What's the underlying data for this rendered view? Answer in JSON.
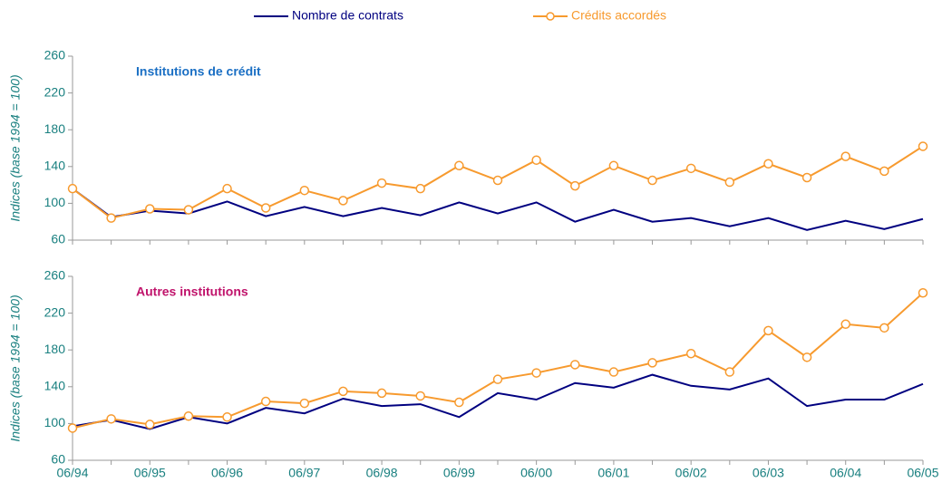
{
  "chart_data": [
    {
      "type": "line",
      "annotation": "Institutions de crédit",
      "annotation_color": "#1a6fc4",
      "ylabel": "Indices (base 1994 = 100)",
      "ylim": [
        60,
        260
      ],
      "yticks": [
        60,
        100,
        140,
        180,
        220,
        260
      ],
      "series": [
        {
          "name": "Nombre de contrats",
          "color": "#000080",
          "marker": false,
          "values": [
            116,
            85,
            92,
            89,
            102,
            86,
            96,
            86,
            95,
            87,
            101,
            89,
            101,
            80,
            93,
            80,
            84,
            75,
            84,
            71,
            81,
            72,
            83
          ]
        },
        {
          "name": "Crédits accordés",
          "color": "#f79a2e",
          "marker": true,
          "values": [
            116,
            84,
            94,
            93,
            116,
            95,
            114,
            103,
            122,
            116,
            141,
            125,
            147,
            119,
            141,
            125,
            138,
            123,
            143,
            128,
            151,
            135,
            162
          ]
        }
      ]
    },
    {
      "type": "line",
      "annotation": "Autres institutions",
      "annotation_color": "#c0136b",
      "ylabel": "Indices (base 1994 = 100)",
      "ylim": [
        60,
        260
      ],
      "yticks": [
        60,
        100,
        140,
        180,
        220,
        260
      ],
      "categories": [
        "06/94",
        null,
        "06/95",
        null,
        "06/96",
        null,
        "06/97",
        null,
        "06/98",
        null,
        "06/99",
        null,
        "06/00",
        null,
        "06/01",
        null,
        "06/02",
        null,
        "06/03",
        null,
        "06/04",
        null,
        "06/05"
      ],
      "series": [
        {
          "name": "Nombre de contrats",
          "color": "#000080",
          "marker": false,
          "values": [
            97,
            104,
            94,
            107,
            100,
            117,
            111,
            127,
            119,
            121,
            107,
            133,
            126,
            144,
            139,
            153,
            141,
            137,
            149,
            119,
            126,
            126,
            143
          ]
        },
        {
          "name": "Crédits accordés",
          "color": "#f79a2e",
          "marker": true,
          "values": [
            95,
            105,
            99,
            108,
            107,
            124,
            122,
            135,
            133,
            130,
            123,
            148,
            155,
            164,
            156,
            166,
            176,
            156,
            201,
            172,
            208,
            204,
            242
          ]
        }
      ]
    }
  ]
}
